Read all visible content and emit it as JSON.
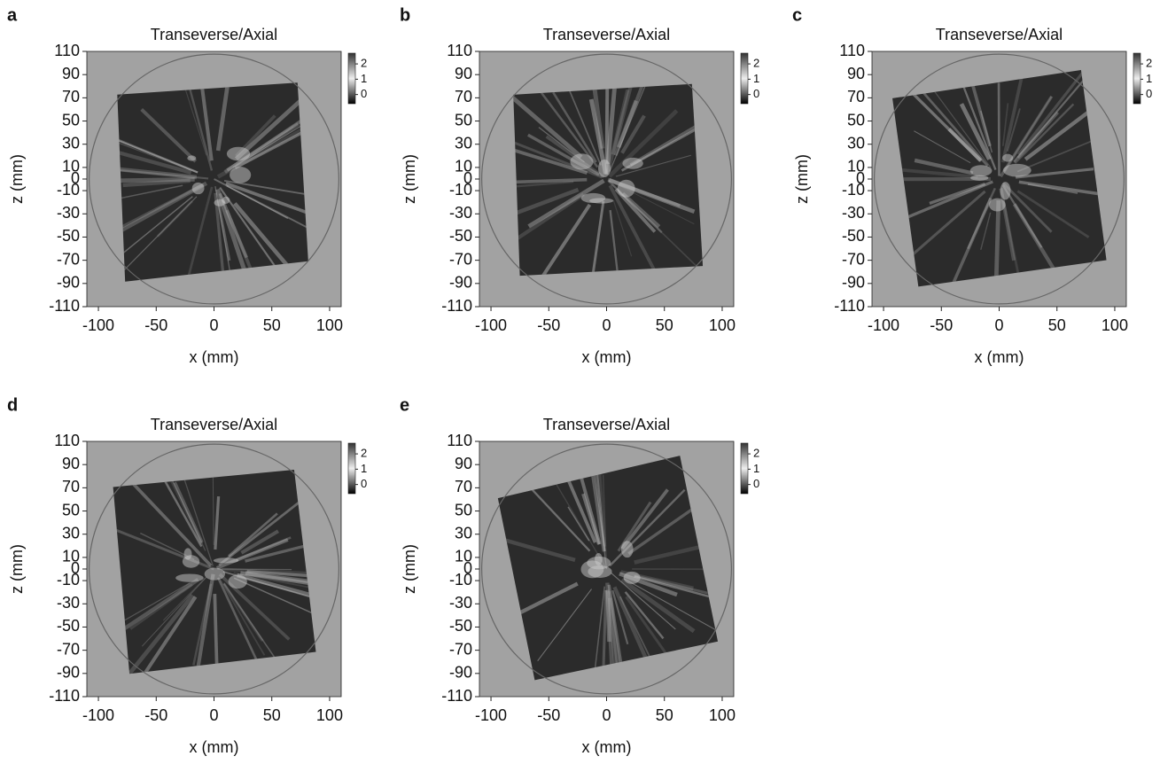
{
  "chart_data": [
    {
      "type": "image",
      "panel": "a",
      "title": "Transeverse/Axial",
      "xlabel": "x (mm)",
      "ylabel": "z (mm)",
      "xlim": [
        -110,
        110
      ],
      "ylim": [
        -110,
        110
      ],
      "xticks": [
        -100,
        -50,
        0,
        50,
        100
      ],
      "yticks": [
        110,
        90,
        70,
        50,
        30,
        10,
        0,
        -10,
        -30,
        -50,
        -70,
        -90,
        -110
      ],
      "clim": [
        -0.6,
        2.7
      ],
      "cticks": [
        0,
        1,
        2
      ]
    },
    {
      "type": "image",
      "panel": "b",
      "title": "Transeverse/Axial",
      "xlabel": "x (mm)",
      "ylabel": "z (mm)",
      "xlim": [
        -110,
        110
      ],
      "ylim": [
        -110,
        110
      ],
      "xticks": [
        -100,
        -50,
        0,
        50,
        100
      ],
      "yticks": [
        110,
        90,
        70,
        50,
        30,
        10,
        0,
        -10,
        -30,
        -50,
        -70,
        -90,
        -110
      ],
      "clim": [
        -0.6,
        2.7
      ],
      "cticks": [
        0,
        1,
        2
      ]
    },
    {
      "type": "image",
      "panel": "c",
      "title": "Transeverse/Axial",
      "xlabel": "x (mm)",
      "ylabel": "z (mm)",
      "xlim": [
        -110,
        110
      ],
      "ylim": [
        -110,
        110
      ],
      "xticks": [
        -100,
        -50,
        0,
        50,
        100
      ],
      "yticks": [
        110,
        90,
        70,
        50,
        30,
        10,
        0,
        -10,
        -30,
        -50,
        -70,
        -90,
        -110
      ],
      "clim": [
        -0.6,
        2.7
      ],
      "cticks": [
        0,
        1,
        2
      ]
    },
    {
      "type": "image",
      "panel": "d",
      "title": "Transeverse/Axial",
      "xlabel": "x (mm)",
      "ylabel": "z (mm)",
      "xlim": [
        -110,
        110
      ],
      "ylim": [
        -110,
        110
      ],
      "xticks": [
        -100,
        -50,
        0,
        50,
        100
      ],
      "yticks": [
        110,
        90,
        70,
        50,
        30,
        10,
        0,
        -10,
        -30,
        -50,
        -70,
        -90,
        -110
      ],
      "clim": [
        -0.6,
        2.7
      ],
      "cticks": [
        0,
        1,
        2
      ]
    },
    {
      "type": "image",
      "panel": "e",
      "title": "Transeverse/Axial",
      "xlabel": "x (mm)",
      "ylabel": "z (mm)",
      "xlim": [
        -110,
        110
      ],
      "ylim": [
        -110,
        110
      ],
      "xticks": [
        -100,
        -50,
        0,
        50,
        100
      ],
      "yticks": [
        110,
        90,
        70,
        50,
        30,
        10,
        0,
        -10,
        -30,
        -50,
        -70,
        -90,
        -110
      ],
      "clim": [
        -0.6,
        2.7
      ],
      "cticks": [
        0,
        1,
        2
      ]
    }
  ]
}
